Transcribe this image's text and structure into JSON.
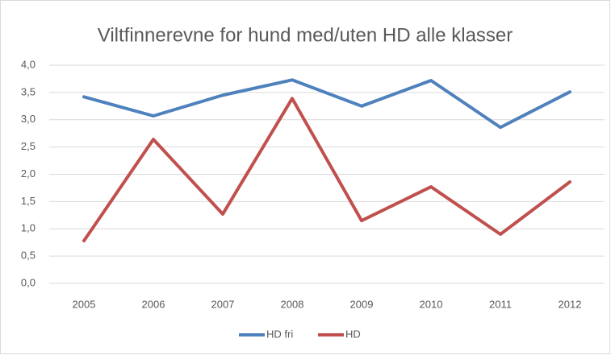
{
  "chart_data": {
    "type": "line",
    "title": "Viltfinnerevne for hund med/uten HD alle klasser",
    "categories": [
      "2005",
      "2006",
      "2007",
      "2008",
      "2009",
      "2010",
      "2011",
      "2012"
    ],
    "series": [
      {
        "name": "HD fri",
        "color": "#4f81bd",
        "values": [
          3.42,
          3.07,
          3.45,
          3.73,
          3.25,
          3.72,
          2.86,
          3.51
        ]
      },
      {
        "name": "HD",
        "color": "#c0504d",
        "values": [
          0.78,
          2.64,
          1.27,
          3.39,
          1.15,
          1.77,
          0.9,
          1.86
        ]
      }
    ],
    "ylim": [
      0,
      4
    ],
    "yticks": [
      {
        "value": 0,
        "label": "0,0"
      },
      {
        "value": 0.5,
        "label": "0,5"
      },
      {
        "value": 1,
        "label": "1,0"
      },
      {
        "value": 1.5,
        "label": "1,5"
      },
      {
        "value": 2,
        "label": "2,0"
      },
      {
        "value": 2.5,
        "label": "2,5"
      },
      {
        "value": 3,
        "label": "3,0"
      },
      {
        "value": 3.5,
        "label": "3,5"
      },
      {
        "value": 4,
        "label": "4,0"
      }
    ],
    "grid": true,
    "legend": "bottom"
  }
}
